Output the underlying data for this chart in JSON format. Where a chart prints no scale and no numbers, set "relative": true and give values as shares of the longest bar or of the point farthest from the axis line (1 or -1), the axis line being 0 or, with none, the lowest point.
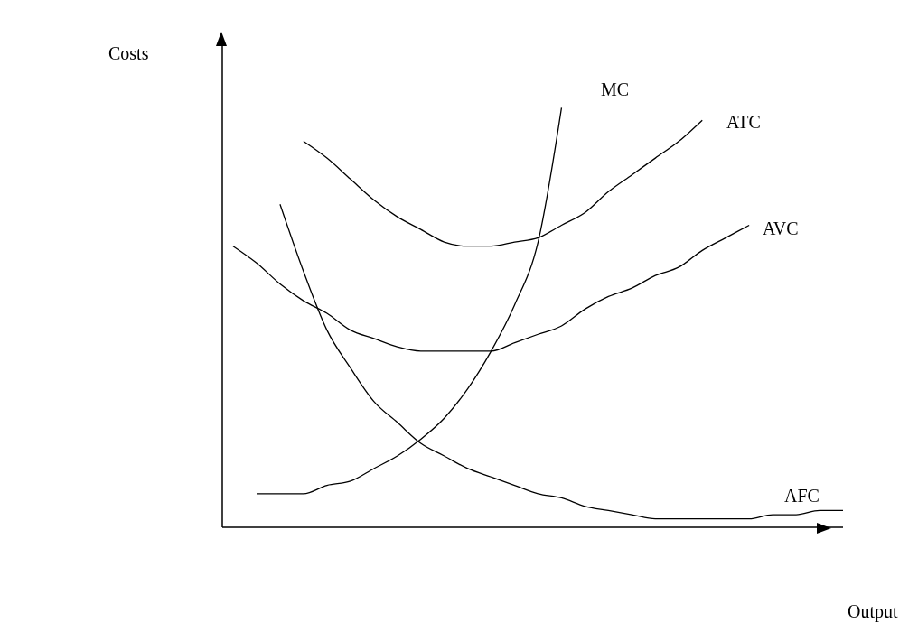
{
  "chart_data": {
    "type": "line",
    "relative": true,
    "xlabel": "Output",
    "ylabel": "Costs",
    "categories": [
      null,
      null,
      null,
      null,
      null,
      null,
      null,
      null,
      null,
      null,
      null,
      null,
      null,
      null,
      null,
      null,
      null,
      null,
      null,
      null,
      null,
      null,
      null,
      null,
      null,
      null,
      null
    ],
    "marker": "none",
    "grid": false,
    "legend": false,
    "series": [
      {
        "name": "MC",
        "color": "#000000",
        "values": [
          null,
          0.08,
          0.08,
          0.08,
          0.1,
          0.11,
          0.14,
          0.17,
          0.21,
          0.26,
          0.33,
          0.42,
          0.53,
          0.68,
          1,
          null,
          null,
          null,
          null,
          null,
          null,
          null,
          null,
          null,
          null,
          null,
          null
        ]
      },
      {
        "name": "ATC",
        "color": "#000000",
        "values": [
          null,
          null,
          null,
          0.92,
          0.88,
          0.83,
          0.78,
          0.74,
          0.71,
          0.68,
          0.67,
          0.67,
          0.68,
          0.69,
          0.72,
          0.75,
          0.8,
          0.84,
          0.88,
          0.92,
          0.97,
          null,
          null,
          null,
          null,
          null,
          null
        ]
      },
      {
        "name": "AVC",
        "color": "#000000",
        "values": [
          0.67,
          0.63,
          0.58,
          0.54,
          0.51,
          0.47,
          0.45,
          0.43,
          0.42,
          0.42,
          0.42,
          0.42,
          0.44,
          0.46,
          0.48,
          0.52,
          0.55,
          0.57,
          0.6,
          0.62,
          0.66,
          0.69,
          0.72,
          null,
          null,
          null,
          null
        ]
      },
      {
        "name": "AFC",
        "color": "#000000",
        "values": [
          null,
          null,
          0.77,
          0.61,
          0.47,
          0.38,
          0.3,
          0.25,
          0.2,
          0.17,
          0.14,
          0.12,
          0.1,
          0.08,
          0.07,
          0.05,
          0.04,
          0.03,
          0.02,
          0.02,
          0.02,
          0.02,
          0.02,
          0.03,
          0.03,
          0.04,
          0.04
        ]
      }
    ]
  }
}
